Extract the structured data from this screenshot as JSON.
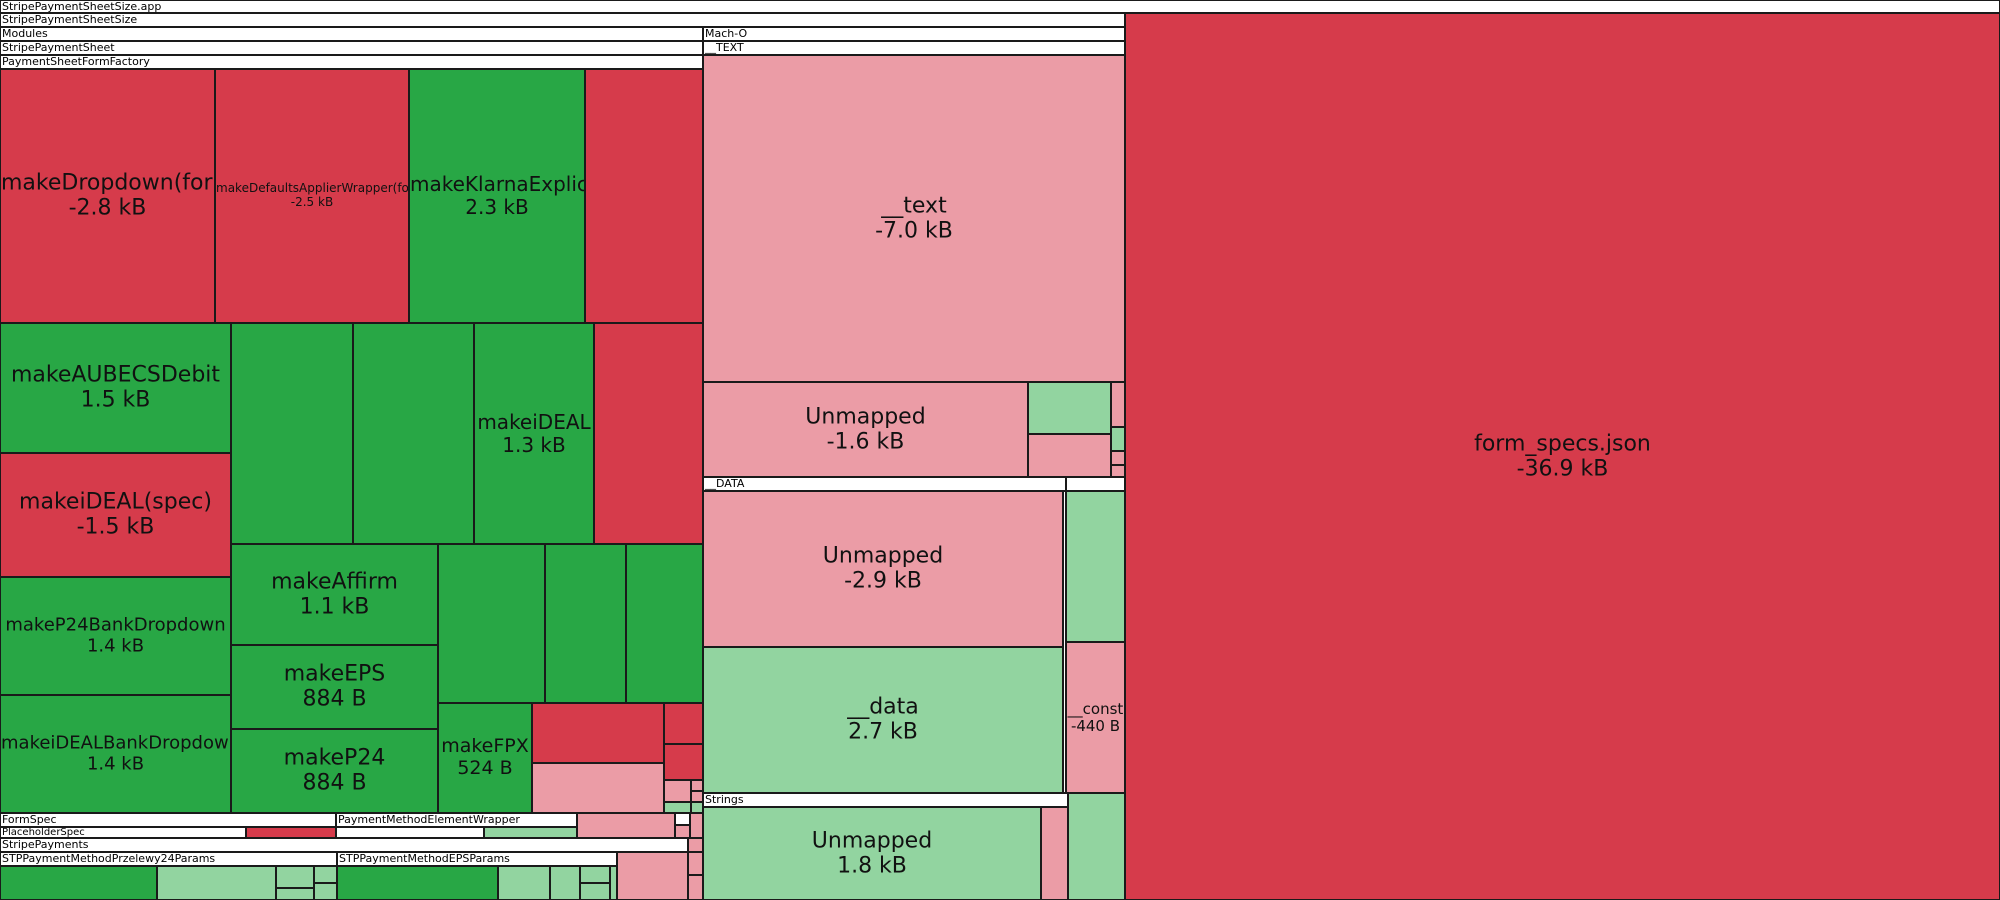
{
  "colors": {
    "increase_large": "#d63b4b",
    "increase_small": "#eb9ca6",
    "decrease_large": "#28a745",
    "decrease_small": "#92d4a0",
    "group_header": "#ffffff"
  },
  "headers": {
    "app": "StripePaymentSheetSize.app",
    "binary": "StripePaymentSheetSize",
    "modules": "Modules",
    "paymentsheet": "StripePaymentSheet",
    "formfactory": "PaymentSheetFormFactory",
    "macho": "Mach-O",
    "text_segment": "__TEXT",
    "data_segment": "__DATA",
    "strings": "Strings",
    "formspec": "FormSpec",
    "pmewrapper": "PaymentMethodElementWrapper",
    "placeholderspec": "PlaceholderSpec",
    "stripepayments": "StripePayments",
    "p24params": "STPPaymentMethodPrzelewy24Params",
    "epsparams": "STPPaymentMethodEPSParams"
  },
  "tiles": {
    "form_specs": {
      "name": "form_specs.json",
      "size": "-36.9 kB"
    },
    "text": {
      "name": "__text",
      "size": "-7.0 kB"
    },
    "text_unmapped": {
      "name": "Unmapped",
      "size": "-1.6 kB"
    },
    "data_unmapped": {
      "name": "Unmapped",
      "size": "-2.9 kB"
    },
    "data": {
      "name": "__data",
      "size": "2.7 kB"
    },
    "const": {
      "name": "__const",
      "size": "-440 B"
    },
    "strings_unmapped": {
      "name": "Unmapped",
      "size": "1.8 kB"
    },
    "make_dropdown": {
      "name": "makeDropdown(for)",
      "size": "-2.8 kB"
    },
    "make_defaults": {
      "name": "makeDefaultsApplierWrapper(for)",
      "size": "-2.5 kB"
    },
    "make_klarna": {
      "name": "makeKlarnaExplicit",
      "size": "2.3 kB"
    },
    "make_aubecs": {
      "name": "makeAUBECSDebit",
      "size": "1.5 kB"
    },
    "make_ideal": {
      "name": "makeiDEAL",
      "size": "1.3 kB"
    },
    "make_ideal_spec": {
      "name": "makeiDEAL(spec)",
      "size": "-1.5 kB"
    },
    "make_affirm": {
      "name": "makeAffirm",
      "size": "1.1 kB"
    },
    "make_p24_bank": {
      "name": "makeP24BankDropdown",
      "size": "1.4 kB"
    },
    "make_eps": {
      "name": "makeEPS",
      "size": "884 B"
    },
    "make_ideal_bank": {
      "name": "makeiDEALBankDropdown",
      "size": "1.4 kB"
    },
    "make_p24": {
      "name": "makeP24",
      "size": "884 B"
    },
    "make_fpx": {
      "name": "makeFPX",
      "size": "524 B"
    }
  }
}
